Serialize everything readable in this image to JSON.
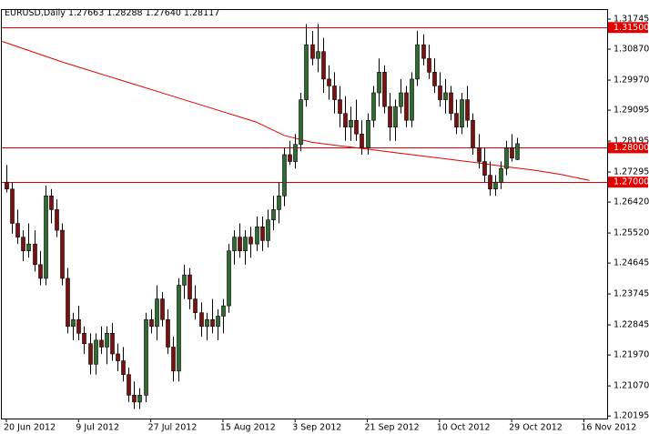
{
  "header": {
    "symbol": "EURUSD",
    "timeframe": "Daily",
    "open": "1.27663",
    "high": "1.28288",
    "low": "1.27640",
    "close": "1.28117"
  },
  "colors": {
    "background": "#ffffff",
    "frame": "#000000",
    "bull_fill": "#2f6b2f",
    "bear_fill": "#7a1010",
    "wick": "#000000",
    "level_line": "#e00000",
    "ma_line": "#e00000",
    "level_label_bg": "#e00000"
  },
  "chart_data": {
    "type": "candlestick",
    "title": "EURUSD,Daily",
    "xlabel": "",
    "ylabel": "",
    "ylim": [
      1.2012,
      1.3201
    ],
    "grid": false,
    "y_ticks": [
      "1.31745",
      "1.30870",
      "1.29970",
      "1.29095",
      "1.28195",
      "1.27295",
      "1.26420",
      "1.25520",
      "1.24645",
      "1.23745",
      "1.22845",
      "1.21970",
      "1.21070",
      "1.20195"
    ],
    "x_ticks": [
      "20 Jun 2012",
      "9 Jul 2012",
      "27 Jul 2012",
      "15 Aug 2012",
      "3 Sep 2012",
      "21 Sep 2012",
      "10 Oct 2012",
      "29 Oct 2012",
      "16 Nov 2012"
    ],
    "x_tick_index": [
      0,
      13,
      26,
      39,
      52,
      65,
      78,
      91,
      104
    ],
    "levels": [
      {
        "value": 1.315,
        "label": "1.31500"
      },
      {
        "value": 1.28,
        "label": "1.28000"
      },
      {
        "value": 1.27,
        "label": "1.27000"
      }
    ],
    "moving_average": {
      "points": [
        [
          -1,
          1.311
        ],
        [
          10,
          1.305
        ],
        [
          20,
          1.3
        ],
        [
          30,
          1.295
        ],
        [
          40,
          1.29
        ],
        [
          45,
          1.2875
        ],
        [
          50,
          1.2836
        ],
        [
          55,
          1.2816
        ],
        [
          60,
          1.2806
        ],
        [
          65,
          1.2796
        ],
        [
          70,
          1.2786
        ],
        [
          75,
          1.2776
        ],
        [
          80,
          1.2766
        ],
        [
          85,
          1.2756
        ],
        [
          90,
          1.2745
        ],
        [
          95,
          1.2735
        ],
        [
          100,
          1.2722
        ],
        [
          105,
          1.2705
        ]
      ]
    },
    "ohlc": [
      [
        1.27,
        1.275,
        1.267,
        1.268
      ],
      [
        1.268,
        1.27,
        1.255,
        1.258
      ],
      [
        1.258,
        1.262,
        1.252,
        1.254
      ],
      [
        1.254,
        1.256,
        1.247,
        1.25
      ],
      [
        1.25,
        1.258,
        1.248,
        1.252
      ],
      [
        1.252,
        1.256,
        1.244,
        1.246
      ],
      [
        1.246,
        1.25,
        1.24,
        1.242
      ],
      [
        1.242,
        1.269,
        1.24,
        1.266
      ],
      [
        1.266,
        1.268,
        1.258,
        1.262
      ],
      [
        1.262,
        1.265,
        1.254,
        1.256
      ],
      [
        1.256,
        1.258,
        1.24,
        1.242
      ],
      [
        1.242,
        1.245,
        1.226,
        1.228
      ],
      [
        1.228,
        1.232,
        1.224,
        1.23
      ],
      [
        1.23,
        1.234,
        1.224,
        1.226
      ],
      [
        1.226,
        1.228,
        1.22,
        1.223
      ],
      [
        1.223,
        1.226,
        1.214,
        1.217
      ],
      [
        1.217,
        1.226,
        1.214,
        1.224
      ],
      [
        1.224,
        1.228,
        1.22,
        1.222
      ],
      [
        1.222,
        1.228,
        1.217,
        1.226
      ],
      [
        1.226,
        1.229,
        1.218,
        1.22
      ],
      [
        1.22,
        1.223,
        1.215,
        1.218
      ],
      [
        1.218,
        1.222,
        1.212,
        1.214
      ],
      [
        1.214,
        1.216,
        1.206,
        1.208
      ],
      [
        1.208,
        1.212,
        1.204,
        1.206
      ],
      [
        1.206,
        1.21,
        1.204,
        1.208
      ],
      [
        1.208,
        1.232,
        1.206,
        1.23
      ],
      [
        1.23,
        1.233,
        1.226,
        1.228
      ],
      [
        1.228,
        1.24,
        1.224,
        1.236
      ],
      [
        1.236,
        1.238,
        1.228,
        1.23
      ],
      [
        1.23,
        1.233,
        1.22,
        1.222
      ],
      [
        1.222,
        1.225,
        1.212,
        1.215
      ],
      [
        1.215,
        1.242,
        1.212,
        1.24
      ],
      [
        1.24,
        1.246,
        1.236,
        1.243
      ],
      [
        1.243,
        1.245,
        1.233,
        1.236
      ],
      [
        1.236,
        1.24,
        1.23,
        1.232
      ],
      [
        1.232,
        1.235,
        1.225,
        1.228
      ],
      [
        1.228,
        1.232,
        1.224,
        1.23
      ],
      [
        1.23,
        1.236,
        1.226,
        1.228
      ],
      [
        1.228,
        1.233,
        1.224,
        1.231
      ],
      [
        1.231,
        1.236,
        1.226,
        1.234
      ],
      [
        1.234,
        1.252,
        1.232,
        1.25
      ],
      [
        1.25,
        1.256,
        1.246,
        1.254
      ],
      [
        1.254,
        1.258,
        1.248,
        1.25
      ],
      [
        1.25,
        1.256,
        1.246,
        1.254
      ],
      [
        1.254,
        1.257,
        1.248,
        1.252
      ],
      [
        1.252,
        1.26,
        1.25,
        1.257
      ],
      [
        1.257,
        1.26,
        1.25,
        1.253
      ],
      [
        1.253,
        1.262,
        1.251,
        1.259
      ],
      [
        1.259,
        1.266,
        1.256,
        1.262
      ],
      [
        1.262,
        1.27,
        1.258,
        1.266
      ],
      [
        1.266,
        1.28,
        1.263,
        1.278
      ],
      [
        1.278,
        1.282,
        1.275,
        1.276
      ],
      [
        1.276,
        1.284,
        1.274,
        1.281
      ],
      [
        1.281,
        1.296,
        1.279,
        1.294
      ],
      [
        1.294,
        1.316,
        1.292,
        1.31
      ],
      [
        1.31,
        1.314,
        1.304,
        1.306
      ],
      [
        1.306,
        1.316,
        1.302,
        1.308
      ],
      [
        1.308,
        1.312,
        1.296,
        1.3
      ],
      [
        1.3,
        1.304,
        1.294,
        1.298
      ],
      [
        1.298,
        1.302,
        1.29,
        1.294
      ],
      [
        1.294,
        1.298,
        1.286,
        1.29
      ],
      [
        1.29,
        1.295,
        1.282,
        1.286
      ],
      [
        1.286,
        1.292,
        1.282,
        1.288
      ],
      [
        1.288,
        1.294,
        1.282,
        1.284
      ],
      [
        1.284,
        1.288,
        1.278,
        1.28
      ],
      [
        1.28,
        1.29,
        1.278,
        1.288
      ],
      [
        1.288,
        1.298,
        1.286,
        1.296
      ],
      [
        1.296,
        1.306,
        1.292,
        1.302
      ],
      [
        1.302,
        1.304,
        1.29,
        1.292
      ],
      [
        1.292,
        1.296,
        1.282,
        1.286
      ],
      [
        1.286,
        1.294,
        1.282,
        1.292
      ],
      [
        1.292,
        1.3,
        1.29,
        1.296
      ],
      [
        1.296,
        1.298,
        1.286,
        1.288
      ],
      [
        1.288,
        1.302,
        1.286,
        1.3
      ],
      [
        1.3,
        1.314,
        1.298,
        1.31
      ],
      [
        1.31,
        1.313,
        1.304,
        1.306
      ],
      [
        1.306,
        1.31,
        1.3,
        1.302
      ],
      [
        1.302,
        1.306,
        1.296,
        1.298
      ],
      [
        1.298,
        1.302,
        1.292,
        1.294
      ],
      [
        1.294,
        1.3,
        1.29,
        1.296
      ],
      [
        1.296,
        1.298,
        1.288,
        1.29
      ],
      [
        1.29,
        1.294,
        1.284,
        1.286
      ],
      [
        1.286,
        1.296,
        1.284,
        1.294
      ],
      [
        1.294,
        1.298,
        1.286,
        1.288
      ],
      [
        1.288,
        1.29,
        1.278,
        1.28
      ],
      [
        1.28,
        1.284,
        1.274,
        1.276
      ],
      [
        1.276,
        1.28,
        1.27,
        1.272
      ],
      [
        1.272,
        1.276,
        1.266,
        1.268
      ],
      [
        1.268,
        1.272,
        1.266,
        1.27
      ],
      [
        1.27,
        1.276,
        1.268,
        1.274
      ],
      [
        1.274,
        1.282,
        1.272,
        1.28
      ],
      [
        1.28,
        1.284,
        1.276,
        1.277
      ],
      [
        1.2766,
        1.2829,
        1.2764,
        1.2812
      ]
    ]
  }
}
